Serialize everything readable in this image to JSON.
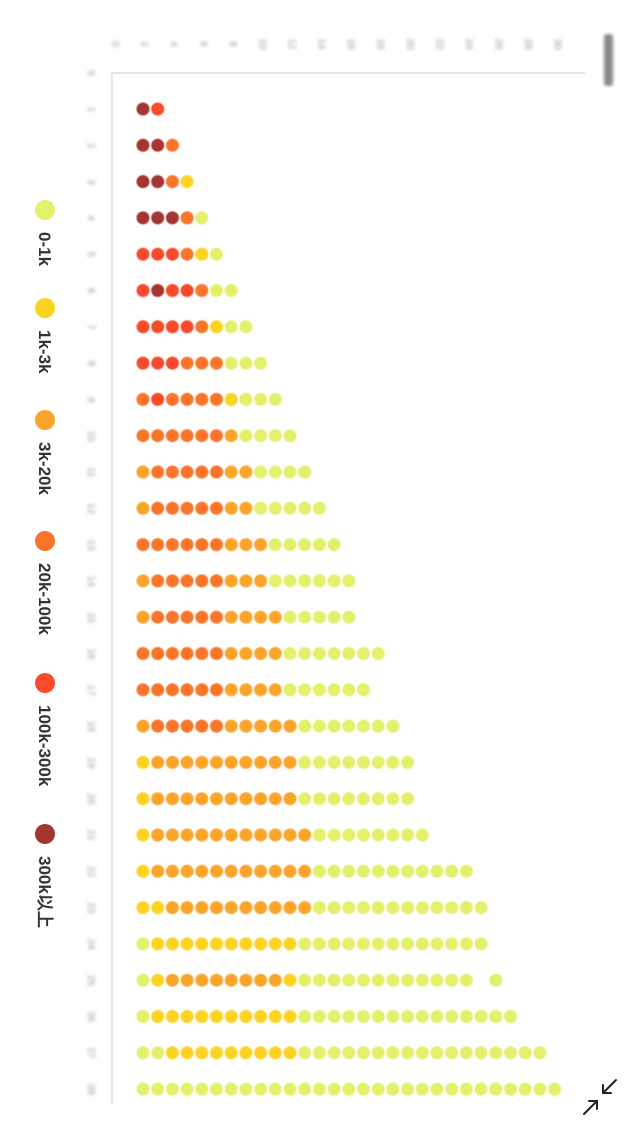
{
  "chart_data": {
    "type": "scatter",
    "title": "",
    "legend": {
      "placement": "left",
      "items": [
        {
          "label": "0-1k",
          "color": "#e3f06c"
        },
        {
          "label": "1k-3k",
          "color": "#fdd322"
        },
        {
          "label": "3k-20k",
          "color": "#fba42c"
        },
        {
          "label": "20k-100k",
          "color": "#f9742a"
        },
        {
          "label": "100k-300k",
          "color": "#f84a2c"
        },
        {
          "label": "300k以上",
          "color": "#a53530"
        }
      ]
    },
    "rows": [
      [
        "300k以上",
        "100k-300k"
      ],
      [
        "300k以上",
        "300k以上",
        "20k-100k"
      ],
      [
        "300k以上",
        "300k以上",
        "20k-100k",
        "1k-3k"
      ],
      [
        "300k以上",
        "300k以上",
        "300k以上",
        "20k-100k",
        "0-1k"
      ],
      [
        "100k-300k",
        "100k-300k",
        "100k-300k",
        "20k-100k",
        "1k-3k",
        "0-1k"
      ],
      [
        "100k-300k",
        "300k以上",
        "100k-300k",
        "100k-300k",
        "20k-100k",
        "0-1k",
        "0-1k"
      ],
      [
        "100k-300k",
        "100k-300k",
        "100k-300k",
        "100k-300k",
        "20k-100k",
        "1k-3k",
        "0-1k",
        "0-1k"
      ],
      [
        "100k-300k",
        "100k-300k",
        "100k-300k",
        "20k-100k",
        "20k-100k",
        "20k-100k",
        "0-1k",
        "0-1k",
        "0-1k"
      ],
      [
        "20k-100k",
        "100k-300k",
        "20k-100k",
        "20k-100k",
        "20k-100k",
        "20k-100k",
        "1k-3k",
        "0-1k",
        "0-1k",
        "0-1k"
      ],
      [
        "20k-100k",
        "20k-100k",
        "20k-100k",
        "20k-100k",
        "20k-100k",
        "20k-100k",
        "3k-20k",
        "0-1k",
        "0-1k",
        "0-1k",
        "0-1k"
      ],
      [
        "3k-20k",
        "20k-100k",
        "20k-100k",
        "20k-100k",
        "20k-100k",
        "20k-100k",
        "3k-20k",
        "3k-20k",
        "0-1k",
        "0-1k",
        "0-1k",
        "0-1k"
      ],
      [
        "3k-20k",
        "20k-100k",
        "20k-100k",
        "20k-100k",
        "20k-100k",
        "20k-100k",
        "3k-20k",
        "3k-20k",
        "0-1k",
        "0-1k",
        "0-1k",
        "0-1k",
        "0-1k"
      ],
      [
        "20k-100k",
        "20k-100k",
        "20k-100k",
        "20k-100k",
        "20k-100k",
        "20k-100k",
        "3k-20k",
        "3k-20k",
        "3k-20k",
        "0-1k",
        "0-1k",
        "0-1k",
        "0-1k",
        "0-1k"
      ],
      [
        "3k-20k",
        "20k-100k",
        "20k-100k",
        "20k-100k",
        "20k-100k",
        "20k-100k",
        "3k-20k",
        "3k-20k",
        "3k-20k",
        "0-1k",
        "0-1k",
        "0-1k",
        "0-1k",
        "0-1k",
        "0-1k"
      ],
      [
        "3k-20k",
        "20k-100k",
        "20k-100k",
        "20k-100k",
        "20k-100k",
        "20k-100k",
        "3k-20k",
        "3k-20k",
        "3k-20k",
        "3k-20k",
        "0-1k",
        "0-1k",
        "0-1k",
        "0-1k",
        "0-1k"
      ],
      [
        "20k-100k",
        "20k-100k",
        "20k-100k",
        "20k-100k",
        "20k-100k",
        "20k-100k",
        "3k-20k",
        "3k-20k",
        "3k-20k",
        "3k-20k",
        "0-1k",
        "0-1k",
        "0-1k",
        "0-1k",
        "0-1k",
        "0-1k",
        "0-1k"
      ],
      [
        "20k-100k",
        "20k-100k",
        "20k-100k",
        "20k-100k",
        "20k-100k",
        "20k-100k",
        "3k-20k",
        "3k-20k",
        "3k-20k",
        "3k-20k",
        "0-1k",
        "0-1k",
        "0-1k",
        "0-1k",
        "0-1k",
        "0-1k"
      ],
      [
        "3k-20k",
        "20k-100k",
        "20k-100k",
        "20k-100k",
        "20k-100k",
        "20k-100k",
        "3k-20k",
        "3k-20k",
        "3k-20k",
        "3k-20k",
        "3k-20k",
        "0-1k",
        "0-1k",
        "0-1k",
        "0-1k",
        "0-1k",
        "0-1k",
        "0-1k"
      ],
      [
        "1k-3k",
        "3k-20k",
        "3k-20k",
        "3k-20k",
        "3k-20k",
        "3k-20k",
        "3k-20k",
        "3k-20k",
        "3k-20k",
        "3k-20k",
        "3k-20k",
        "0-1k",
        "0-1k",
        "0-1k",
        "0-1k",
        "0-1k",
        "0-1k",
        "0-1k",
        "0-1k"
      ],
      [
        "1k-3k",
        "3k-20k",
        "3k-20k",
        "3k-20k",
        "3k-20k",
        "3k-20k",
        "3k-20k",
        "3k-20k",
        "3k-20k",
        "3k-20k",
        "3k-20k",
        "0-1k",
        "0-1k",
        "0-1k",
        "0-1k",
        "0-1k",
        "0-1k",
        "0-1k",
        "0-1k"
      ],
      [
        "1k-3k",
        "3k-20k",
        "3k-20k",
        "3k-20k",
        "3k-20k",
        "3k-20k",
        "3k-20k",
        "3k-20k",
        "3k-20k",
        "3k-20k",
        "3k-20k",
        "3k-20k",
        "0-1k",
        "0-1k",
        "0-1k",
        "0-1k",
        "0-1k",
        "0-1k",
        "0-1k",
        "0-1k"
      ],
      [
        "1k-3k",
        "3k-20k",
        "3k-20k",
        "3k-20k",
        "3k-20k",
        "3k-20k",
        "3k-20k",
        "3k-20k",
        "3k-20k",
        "3k-20k",
        "3k-20k",
        "3k-20k",
        "0-1k",
        "0-1k",
        "0-1k",
        "0-1k",
        "0-1k",
        "0-1k",
        "0-1k",
        "0-1k",
        "0-1k",
        "0-1k",
        "0-1k"
      ],
      [
        "1k-3k",
        "1k-3k",
        "3k-20k",
        "3k-20k",
        "3k-20k",
        "3k-20k",
        "3k-20k",
        "3k-20k",
        "3k-20k",
        "3k-20k",
        "3k-20k",
        "3k-20k",
        "0-1k",
        "0-1k",
        "0-1k",
        "0-1k",
        "0-1k",
        "0-1k",
        "0-1k",
        "0-1k",
        "0-1k",
        "0-1k",
        "0-1k",
        "0-1k"
      ],
      [
        "0-1k",
        "1k-3k",
        "1k-3k",
        "1k-3k",
        "1k-3k",
        "1k-3k",
        "1k-3k",
        "1k-3k",
        "1k-3k",
        "1k-3k",
        "1k-3k",
        "0-1k",
        "0-1k",
        "0-1k",
        "0-1k",
        "0-1k",
        "0-1k",
        "0-1k",
        "0-1k",
        "0-1k",
        "0-1k",
        "0-1k",
        "0-1k",
        "0-1k"
      ],
      [
        "0-1k",
        "1k-3k",
        "3k-20k",
        "3k-20k",
        "3k-20k",
        "3k-20k",
        "3k-20k",
        "3k-20k",
        "3k-20k",
        "3k-20k",
        "1k-3k",
        "0-1k",
        "0-1k",
        "0-1k",
        "0-1k",
        "0-1k",
        "0-1k",
        "0-1k",
        "0-1k",
        "0-1k",
        "0-1k",
        "0-1k",
        "0-1k",
        null,
        "0-1k"
      ],
      [
        "0-1k",
        "1k-3k",
        "1k-3k",
        "1k-3k",
        "1k-3k",
        "1k-3k",
        "1k-3k",
        "1k-3k",
        "1k-3k",
        "1k-3k",
        "1k-3k",
        "0-1k",
        "0-1k",
        "0-1k",
        "0-1k",
        "0-1k",
        "0-1k",
        "0-1k",
        "0-1k",
        "0-1k",
        "0-1k",
        "0-1k",
        "0-1k",
        "0-1k",
        "0-1k",
        "0-1k"
      ],
      [
        "0-1k",
        "0-1k",
        "1k-3k",
        "1k-3k",
        "1k-3k",
        "1k-3k",
        "1k-3k",
        "1k-3k",
        "1k-3k",
        "1k-3k",
        "1k-3k",
        "0-1k",
        "0-1k",
        "0-1k",
        "0-1k",
        "0-1k",
        "0-1k",
        "0-1k",
        "0-1k",
        "0-1k",
        "0-1k",
        "0-1k",
        "0-1k",
        "0-1k",
        "0-1k",
        "0-1k",
        "0-1k",
        "0-1k"
      ],
      [
        "0-1k",
        "0-1k",
        "0-1k",
        "0-1k",
        "0-1k",
        "0-1k",
        "0-1k",
        "0-1k",
        "0-1k",
        "0-1k",
        "0-1k",
        "0-1k",
        "0-1k",
        "0-1k",
        "0-1k",
        "0-1k",
        "0-1k",
        "0-1k",
        "0-1k",
        "0-1k",
        "0-1k",
        "0-1k",
        "0-1k",
        "0-1k",
        "0-1k",
        "0-1k",
        "0-1k",
        "0-1k",
        "0-1k"
      ]
    ],
    "x_ticks": [
      "0",
      "2",
      "4",
      "6",
      "8",
      "10",
      "12",
      "14",
      "16",
      "18",
      "20",
      "22",
      "24",
      "26",
      "28",
      "30"
    ],
    "y_ticks": [
      "0",
      "1",
      "2",
      "3",
      "4",
      "5",
      "6",
      "7",
      "8",
      "9",
      "10",
      "11",
      "12",
      "13",
      "14",
      "15",
      "16",
      "17",
      "18",
      "19",
      "20",
      "21",
      "22",
      "23",
      "24",
      "25",
      "26",
      "27",
      "28"
    ],
    "grid": false
  },
  "toolbar": {
    "collapse_icon": "collapse-arrows-icon"
  }
}
